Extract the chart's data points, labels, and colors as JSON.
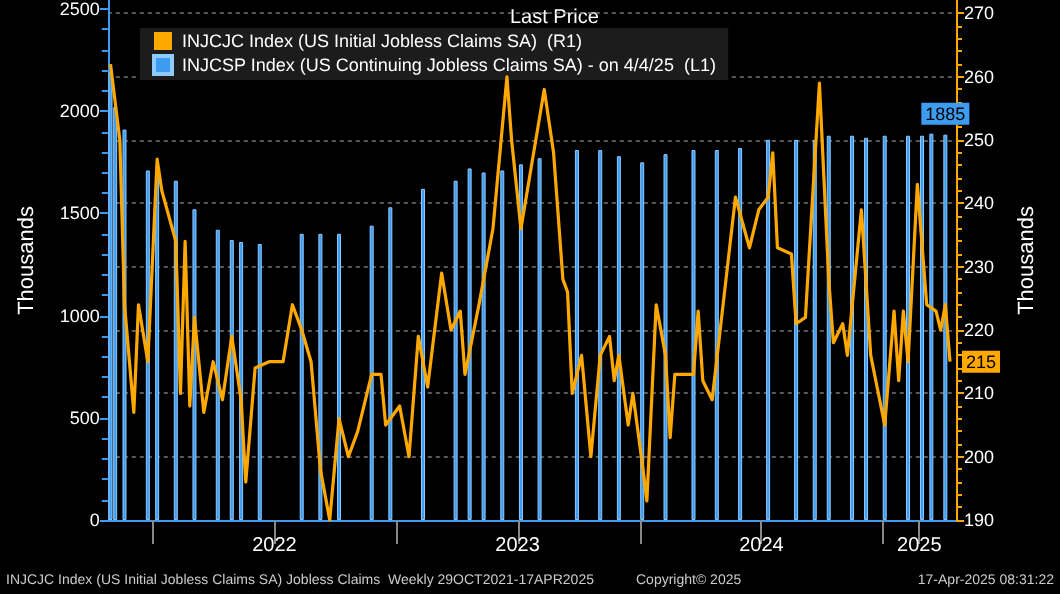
{
  "chart_data": {
    "type": "bar",
    "legend_title": "Last Price",
    "ylabel": "Thousands",
    "y2label": "Thousands",
    "xlim": [
      "2021-10-25",
      "2025-04-20"
    ],
    "xticks": [
      {
        "value": "2022-01-01",
        "label": null
      },
      {
        "value": "2022-07-02",
        "label": "2022"
      },
      {
        "value": "2023-01-01",
        "label": null
      },
      {
        "value": "2023-07-02",
        "label": "2023"
      },
      {
        "value": "2024-01-01",
        "label": null
      },
      {
        "value": "2024-07-02",
        "label": "2024"
      },
      {
        "value": "2025-01-01",
        "label": null
      },
      {
        "value": "2025-02-24",
        "label": "2025"
      }
    ],
    "ylim": [
      0,
      2540
    ],
    "yticks": [
      0,
      500,
      1000,
      1500,
      2000,
      2500
    ],
    "y2lim": [
      190,
      272
    ],
    "y2ticks": [
      190,
      200,
      210,
      220,
      230,
      240,
      250,
      260,
      270
    ],
    "grid": "y",
    "legend": "top left",
    "series": [
      {
        "name": "INJCJC Index (US Initial Jobless Claims SA)  (R1)",
        "type": "line",
        "axis": "y2",
        "color": "#ffa800",
        "marker": "none",
        "x": [
          "2021-10-29",
          "2021-11-12",
          "2021-11-19",
          "2021-12-03",
          "2021-12-10",
          "2021-12-24",
          "2022-01-07",
          "2022-01-14",
          "2022-02-04",
          "2022-02-11",
          "2022-02-18",
          "2022-02-25",
          "2022-03-04",
          "2022-03-18",
          "2022-04-01",
          "2022-04-15",
          "2022-04-29",
          "2022-05-13",
          "2022-05-20",
          "2022-06-03",
          "2022-06-24",
          "2022-07-15",
          "2022-07-29",
          "2022-08-12",
          "2022-08-26",
          "2022-09-09",
          "2022-09-23",
          "2022-10-07",
          "2022-10-21",
          "2022-11-04",
          "2022-11-25",
          "2022-12-09",
          "2022-12-16",
          "2023-01-06",
          "2023-01-20",
          "2023-02-03",
          "2023-02-17",
          "2023-03-03",
          "2023-03-10",
          "2023-03-24",
          "2023-04-07",
          "2023-04-14",
          "2023-05-05",
          "2023-05-26",
          "2023-06-16",
          "2023-06-23",
          "2023-07-07",
          "2023-08-11",
          "2023-08-25",
          "2023-09-08",
          "2023-09-15",
          "2023-09-22",
          "2023-10-06",
          "2023-10-20",
          "2023-11-03",
          "2023-11-17",
          "2023-11-24",
          "2023-12-01",
          "2023-12-15",
          "2023-12-22",
          "2024-01-05",
          "2024-01-12",
          "2024-01-26",
          "2024-02-09",
          "2024-02-16",
          "2024-02-23",
          "2024-03-22",
          "2024-03-29",
          "2024-04-05",
          "2024-04-19",
          "2024-05-24",
          "2024-06-14",
          "2024-06-28",
          "2024-07-12",
          "2024-07-19",
          "2024-07-26",
          "2024-08-16",
          "2024-08-23",
          "2024-09-06",
          "2024-09-27",
          "2024-10-11",
          "2024-10-18",
          "2024-11-01",
          "2024-11-08",
          "2024-11-29",
          "2024-12-13",
          "2025-01-03",
          "2025-01-17",
          "2025-01-24",
          "2025-01-31",
          "2025-02-07",
          "2025-02-21",
          "2025-03-07",
          "2025-03-21",
          "2025-03-28",
          "2025-04-04",
          "2025-04-11"
        ],
        "values": [
          262,
          250,
          224,
          207,
          224,
          215,
          247,
          242,
          234,
          210,
          234,
          208,
          222,
          207,
          215,
          209,
          219,
          209,
          196,
          214,
          215,
          215,
          224,
          220,
          215,
          198,
          190,
          206,
          200,
          204,
          213,
          213,
          205,
          208,
          200,
          219,
          211,
          223,
          229,
          220,
          223,
          213,
          224,
          236,
          260,
          250,
          236,
          258,
          248,
          228,
          226,
          210,
          216,
          200,
          216,
          219,
          212,
          216,
          205,
          210,
          199,
          193,
          224,
          216,
          203,
          213,
          213,
          223,
          212,
          209,
          241,
          233,
          239,
          241,
          248,
          233,
          232,
          221,
          222,
          259,
          228,
          218,
          221,
          216,
          239,
          216,
          205,
          223,
          212,
          223,
          215,
          243,
          224,
          223,
          220,
          224,
          215
        ],
        "value_labels": [
          null,
          null,
          null,
          null,
          null,
          null,
          null,
          null,
          null,
          null,
          null,
          null,
          null,
          null,
          null,
          null,
          null,
          null,
          null,
          null,
          null,
          null,
          null,
          null,
          null,
          null,
          null,
          null,
          null,
          null,
          null,
          null,
          null,
          null,
          null,
          null,
          null,
          null,
          null,
          null,
          null,
          null,
          null,
          null,
          null,
          null,
          null,
          null,
          null,
          null,
          null,
          null,
          null,
          null,
          null,
          null,
          null,
          null,
          null,
          null,
          null,
          null,
          null,
          null,
          null,
          null,
          null,
          null,
          null,
          null,
          null,
          null,
          null,
          null,
          null,
          null,
          null,
          null,
          null,
          null,
          null,
          null,
          null,
          null,
          null,
          null,
          null,
          null,
          null,
          null,
          null,
          null,
          null,
          null,
          null,
          null,
          "215"
        ]
      },
      {
        "name": "INJCSP Index (US Continuing Jobless Claims SA) - on 4/4/25  (L1)",
        "color": "#3d9cf0",
        "x": [
          "2021-10-29",
          "2021-11-05",
          "2021-11-19",
          "2021-12-24",
          "2022-01-07",
          "2022-02-04",
          "2022-03-04",
          "2022-04-08",
          "2022-04-29",
          "2022-05-13",
          "2022-06-10",
          "2022-08-12",
          "2022-09-09",
          "2022-10-07",
          "2022-11-25",
          "2022-12-23",
          "2023-02-10",
          "2023-03-31",
          "2023-04-21",
          "2023-05-12",
          "2023-06-09",
          "2023-07-07",
          "2023-08-04",
          "2023-09-29",
          "2023-11-03",
          "2023-12-01",
          "2024-01-05",
          "2024-02-09",
          "2024-03-22",
          "2024-04-26",
          "2024-05-31",
          "2024-07-12",
          "2024-08-23",
          "2024-09-20",
          "2024-10-11",
          "2024-11-15",
          "2024-12-06",
          "2025-01-03",
          "2025-02-07",
          "2025-02-28",
          "2025-03-14",
          "2025-04-04"
        ],
        "values": [
          2190,
          2020,
          1910,
          1710,
          1690,
          1660,
          1520,
          1420,
          1370,
          1360,
          1350,
          1400,
          1400,
          1400,
          1440,
          1530,
          1620,
          1660,
          1720,
          1700,
          1710,
          1740,
          1770,
          1810,
          1810,
          1780,
          1750,
          1790,
          1810,
          1810,
          1820,
          1860,
          1860,
          1860,
          1880,
          1880,
          1870,
          1880,
          1880,
          1880,
          1890,
          1885
        ],
        "value_labels": [
          null,
          null,
          null,
          null,
          null,
          null,
          null,
          null,
          null,
          null,
          null,
          null,
          null,
          null,
          null,
          null,
          null,
          null,
          null,
          null,
          null,
          null,
          null,
          null,
          null,
          null,
          null,
          null,
          null,
          null,
          null,
          null,
          null,
          null,
          null,
          null,
          null,
          null,
          null,
          null,
          null,
          "1885"
        ]
      }
    ],
    "annotations": [
      "INJCJC Index (US Initial Jobless Claims SA) Jobless Claims  Weekly 29OCT2021-17APR2025",
      "Copyright© 2025",
      "17-Apr-2025 08:31:22"
    ]
  }
}
